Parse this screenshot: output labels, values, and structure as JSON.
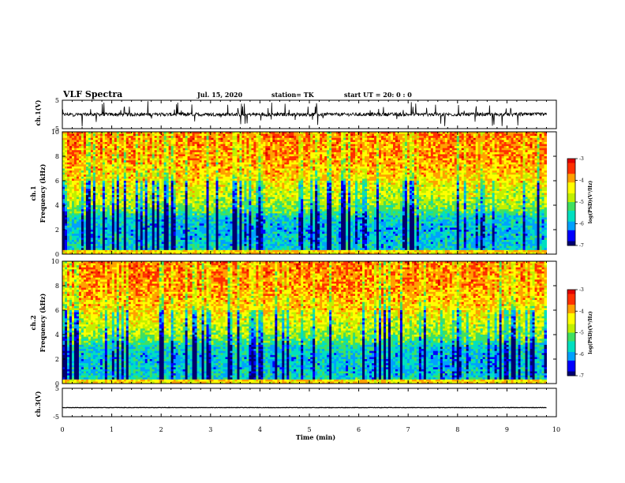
{
  "header": {
    "title": "VLF Spectra",
    "date": "Jul. 15, 2020",
    "station": "station= TK",
    "start": "start UT =  20: 0 : 0"
  },
  "colors": {
    "colormap": [
      "#000070",
      "#0000ff",
      "#00a0ff",
      "#00e0c0",
      "#40e060",
      "#c0f000",
      "#ffff00",
      "#ffa000",
      "#ff3000",
      "#e00000"
    ],
    "trace": "#000000"
  },
  "chart_data": [
    {
      "type": "line",
      "panel": "ch1-waveform",
      "ylabel": "ch.1(V)",
      "ylim": [
        -5,
        5
      ],
      "yticks": [
        "5",
        "-5"
      ],
      "x_range": [
        0,
        9.8
      ],
      "baseline_v": 0,
      "description_values": "noisy waveform around 0 V with frequent spikes reaching about ±5 V"
    },
    {
      "type": "heatmap",
      "panel": "ch1-spectrogram",
      "ylabel_line1": "ch.1",
      "ylabel_line2": "Frequency (kHz)",
      "ylim": [
        0,
        10
      ],
      "yticks": [
        "0",
        "2",
        "4",
        "6",
        "8",
        "10"
      ],
      "x_range": [
        0,
        9.8
      ],
      "colorbar": {
        "label": "log(PSD)(V²/Hz)",
        "range": [
          -7,
          -3
        ],
        "ticks": [
          "-3",
          "-4",
          "-5",
          "-6",
          "-7"
        ]
      },
      "mean_log_psd_by_freq_khz": [
        [
          0,
          -5.4
        ],
        [
          1,
          -5.6
        ],
        [
          2,
          -5.7
        ],
        [
          3,
          -5.5
        ],
        [
          3.5,
          -5.0
        ],
        [
          4,
          -4.7
        ],
        [
          5,
          -4.4
        ],
        [
          6,
          -4.1
        ],
        [
          7,
          -3.9
        ],
        [
          8,
          -3.7
        ],
        [
          10,
          -3.6
        ]
      ]
    },
    {
      "type": "heatmap",
      "panel": "ch2-spectrogram",
      "ylabel_line1": "ch.2",
      "ylabel_line2": "Frequency (kHz)",
      "ylim": [
        0,
        10
      ],
      "yticks": [
        "0",
        "2",
        "4",
        "6",
        "8",
        "10"
      ],
      "x_range": [
        0,
        9.8
      ],
      "colorbar": {
        "label": "log(PSD)(V²/Hz)",
        "range": [
          -7,
          -3
        ],
        "ticks": [
          "-3",
          "-4",
          "-5",
          "-6",
          "-7"
        ]
      },
      "mean_log_psd_by_freq_khz": [
        [
          0,
          -5.4
        ],
        [
          1,
          -5.6
        ],
        [
          2,
          -5.7
        ],
        [
          3,
          -5.5
        ],
        [
          3.5,
          -5.0
        ],
        [
          4,
          -4.7
        ],
        [
          5,
          -4.4
        ],
        [
          6,
          -4.1
        ],
        [
          7,
          -3.9
        ],
        [
          8,
          -3.7
        ],
        [
          10,
          -3.6
        ]
      ]
    },
    {
      "type": "line",
      "panel": "ch3-waveform",
      "ylabel": "ch.3(V)",
      "ylim": [
        -5,
        5
      ],
      "yticks": [
        "5",
        "-5"
      ],
      "x_range": [
        0,
        9.8
      ],
      "baseline_v": -1.8
    }
  ],
  "xaxis": {
    "label": "Time (min)",
    "range": [
      0,
      10
    ],
    "ticks": [
      "0",
      "1",
      "2",
      "3",
      "4",
      "5",
      "6",
      "7",
      "8",
      "9",
      "10"
    ]
  }
}
